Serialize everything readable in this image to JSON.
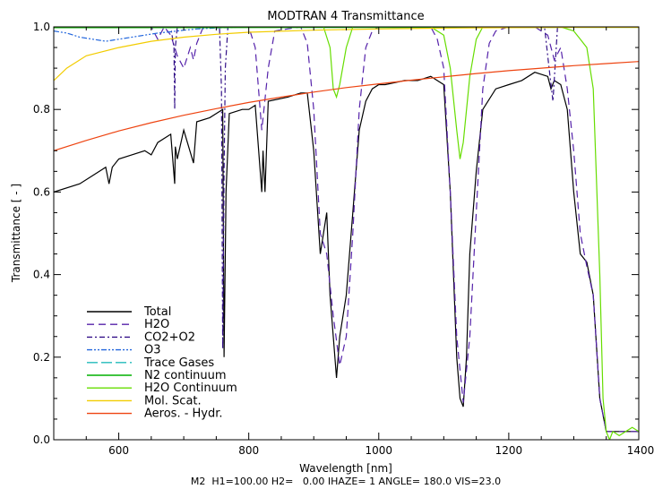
{
  "chart_data": {
    "type": "line",
    "title": "MODTRAN 4 Transmittance",
    "xlabel": "Wavelength  [nm]",
    "ylabel": "Transmittance  [ - ]",
    "footer": "M2  H1=100.00 H2=   0.00 IHAZE= 1 ANGLE= 180.0 VIS=23.0",
    "xlim": [
      500,
      1400
    ],
    "ylim": [
      0.0,
      1.0
    ],
    "xticks": [
      600,
      800,
      1000,
      1200,
      1400
    ],
    "yticks": [
      0.0,
      0.2,
      0.4,
      0.6,
      0.8,
      1.0
    ],
    "xtick_labels": [
      "600",
      "800",
      "1000",
      "1200",
      "1400"
    ],
    "ytick_labels": [
      "0.0",
      "0.2",
      "0.4",
      "0.6",
      "0.8",
      "1.0"
    ],
    "grid": false,
    "legend_position": "bottom-left",
    "series": [
      {
        "name": "Total",
        "color": "#000000",
        "dash": "solid",
        "x": [
          500,
          540,
          560,
          580,
          585,
          590,
          600,
          620,
          640,
          650,
          660,
          680,
          686,
          687,
          690,
          700,
          715,
          720,
          740,
          760,
          762,
          765,
          770,
          790,
          800,
          810,
          820,
          822,
          825,
          830,
          860,
          880,
          890,
          900,
          910,
          920,
          925,
          930,
          935,
          940,
          950,
          960,
          970,
          980,
          990,
          1000,
          1010,
          1040,
          1060,
          1080,
          1100,
          1110,
          1115,
          1120,
          1125,
          1130,
          1135,
          1140,
          1150,
          1160,
          1180,
          1200,
          1220,
          1240,
          1260,
          1265,
          1270,
          1280,
          1290,
          1300,
          1310,
          1320,
          1330,
          1340,
          1350,
          1360,
          1380,
          1400
        ],
        "y": [
          0.6,
          0.62,
          0.64,
          0.66,
          0.62,
          0.66,
          0.68,
          0.69,
          0.7,
          0.69,
          0.72,
          0.74,
          0.62,
          0.71,
          0.68,
          0.75,
          0.67,
          0.77,
          0.78,
          0.8,
          0.2,
          0.6,
          0.79,
          0.8,
          0.8,
          0.81,
          0.6,
          0.7,
          0.6,
          0.82,
          0.83,
          0.84,
          0.84,
          0.7,
          0.45,
          0.55,
          0.35,
          0.25,
          0.15,
          0.25,
          0.35,
          0.55,
          0.75,
          0.82,
          0.85,
          0.86,
          0.86,
          0.87,
          0.87,
          0.88,
          0.86,
          0.6,
          0.4,
          0.2,
          0.1,
          0.08,
          0.2,
          0.45,
          0.65,
          0.8,
          0.85,
          0.86,
          0.87,
          0.89,
          0.88,
          0.85,
          0.87,
          0.86,
          0.8,
          0.6,
          0.45,
          0.43,
          0.35,
          0.1,
          0.02,
          0.02,
          0.02,
          0.02
        ]
      },
      {
        "name": "H2O",
        "color": "#5522aa",
        "dash": "8,5",
        "x": [
          500,
          650,
          660,
          670,
          680,
          690,
          700,
          710,
          715,
          720,
          730,
          740,
          800,
          810,
          820,
          830,
          840,
          880,
          890,
          900,
          910,
          920,
          930,
          940,
          950,
          960,
          970,
          980,
          990,
          1000,
          1080,
          1090,
          1100,
          1110,
          1120,
          1130,
          1140,
          1150,
          1160,
          1170,
          1180,
          1200,
          1240,
          1260,
          1270,
          1280,
          1290,
          1300,
          1310,
          1320,
          1330,
          1340,
          1350,
          1360,
          1380,
          1400
        ],
        "y": [
          1.0,
          1.0,
          0.97,
          1.0,
          0.98,
          0.93,
          0.9,
          0.95,
          0.92,
          0.96,
          1.0,
          1.0,
          1.0,
          0.95,
          0.75,
          0.9,
          0.99,
          1.0,
          0.96,
          0.8,
          0.5,
          0.45,
          0.3,
          0.18,
          0.25,
          0.5,
          0.8,
          0.95,
          0.99,
          1.0,
          1.0,
          0.97,
          0.9,
          0.6,
          0.25,
          0.09,
          0.25,
          0.55,
          0.85,
          0.96,
          0.99,
          1.0,
          1.0,
          0.98,
          0.92,
          0.95,
          0.85,
          0.7,
          0.5,
          0.42,
          0.35,
          0.1,
          0.02,
          0.02,
          0.02,
          0.02
        ]
      },
      {
        "name": "CO2+O2",
        "color": "#331188",
        "dash": "6,3,2,3",
        "x": [
          500,
          680,
          685,
          686,
          687,
          690,
          700,
          755,
          758,
          760,
          762,
          764,
          768,
          780,
          1255,
          1262,
          1268,
          1275,
          1400
        ],
        "y": [
          1.0,
          1.0,
          0.95,
          0.8,
          0.95,
          1.0,
          1.0,
          1.0,
          0.85,
          0.22,
          0.65,
          0.9,
          1.0,
          1.0,
          1.0,
          0.9,
          0.82,
          1.0,
          1.0
        ]
      },
      {
        "name": "O3",
        "color": "#2266dd",
        "dash": "6,2,2,2,2,2",
        "x": [
          500,
          520,
          540,
          560,
          580,
          600,
          620,
          640,
          660,
          680,
          700,
          720,
          760,
          800,
          1400
        ],
        "y": [
          0.99,
          0.985,
          0.975,
          0.97,
          0.965,
          0.97,
          0.975,
          0.98,
          0.985,
          0.988,
          0.992,
          0.995,
          0.998,
          1.0,
          1.0
        ]
      },
      {
        "name": "Trace Gases",
        "color": "#22bbbb",
        "dash": "12,4",
        "x": [
          500,
          1400
        ],
        "y": [
          1.0,
          1.0
        ]
      },
      {
        "name": "N2 continuum",
        "color": "#00b000",
        "dash": "solid",
        "x": [
          500,
          1400
        ],
        "y": [
          0.998,
          0.999
        ]
      },
      {
        "name": "H2O Continuum",
        "color": "#66dd00",
        "dash": "solid",
        "x": [
          500,
          915,
          925,
          930,
          935,
          940,
          950,
          960,
          1080,
          1100,
          1110,
          1120,
          1125,
          1130,
          1140,
          1150,
          1160,
          1240,
          1280,
          1300,
          1310,
          1320,
          1330,
          1340,
          1345,
          1350,
          1355,
          1360,
          1370,
          1380,
          1390,
          1400
        ],
        "y": [
          1.0,
          1.0,
          0.95,
          0.85,
          0.83,
          0.86,
          0.95,
          1.0,
          1.0,
          0.98,
          0.9,
          0.75,
          0.68,
          0.72,
          0.88,
          0.97,
          1.0,
          1.0,
          1.0,
          0.99,
          0.97,
          0.95,
          0.85,
          0.4,
          0.1,
          0.02,
          0.0,
          0.02,
          0.01,
          0.02,
          0.03,
          0.02
        ]
      },
      {
        "name": "Mol. Scat.",
        "color": "#f2cc00",
        "dash": "solid",
        "x": [
          500,
          520,
          550,
          600,
          650,
          700,
          750,
          800,
          900,
          1000,
          1100,
          1200,
          1300,
          1400
        ],
        "y": [
          0.87,
          0.9,
          0.93,
          0.95,
          0.965,
          0.975,
          0.982,
          0.987,
          0.992,
          0.995,
          0.997,
          0.998,
          0.999,
          0.999
        ]
      },
      {
        "name": "Aeros. - Hydr.",
        "color": "#ee4411",
        "dash": "solid",
        "x": [
          500,
          550,
          600,
          650,
          700,
          750,
          800,
          850,
          900,
          950,
          1000,
          1050,
          1100,
          1150,
          1200,
          1250,
          1300,
          1350,
          1400
        ],
        "y": [
          0.7,
          0.725,
          0.748,
          0.768,
          0.786,
          0.802,
          0.817,
          0.83,
          0.842,
          0.853,
          0.862,
          0.871,
          0.879,
          0.887,
          0.894,
          0.9,
          0.906,
          0.911,
          0.916
        ]
      }
    ]
  }
}
